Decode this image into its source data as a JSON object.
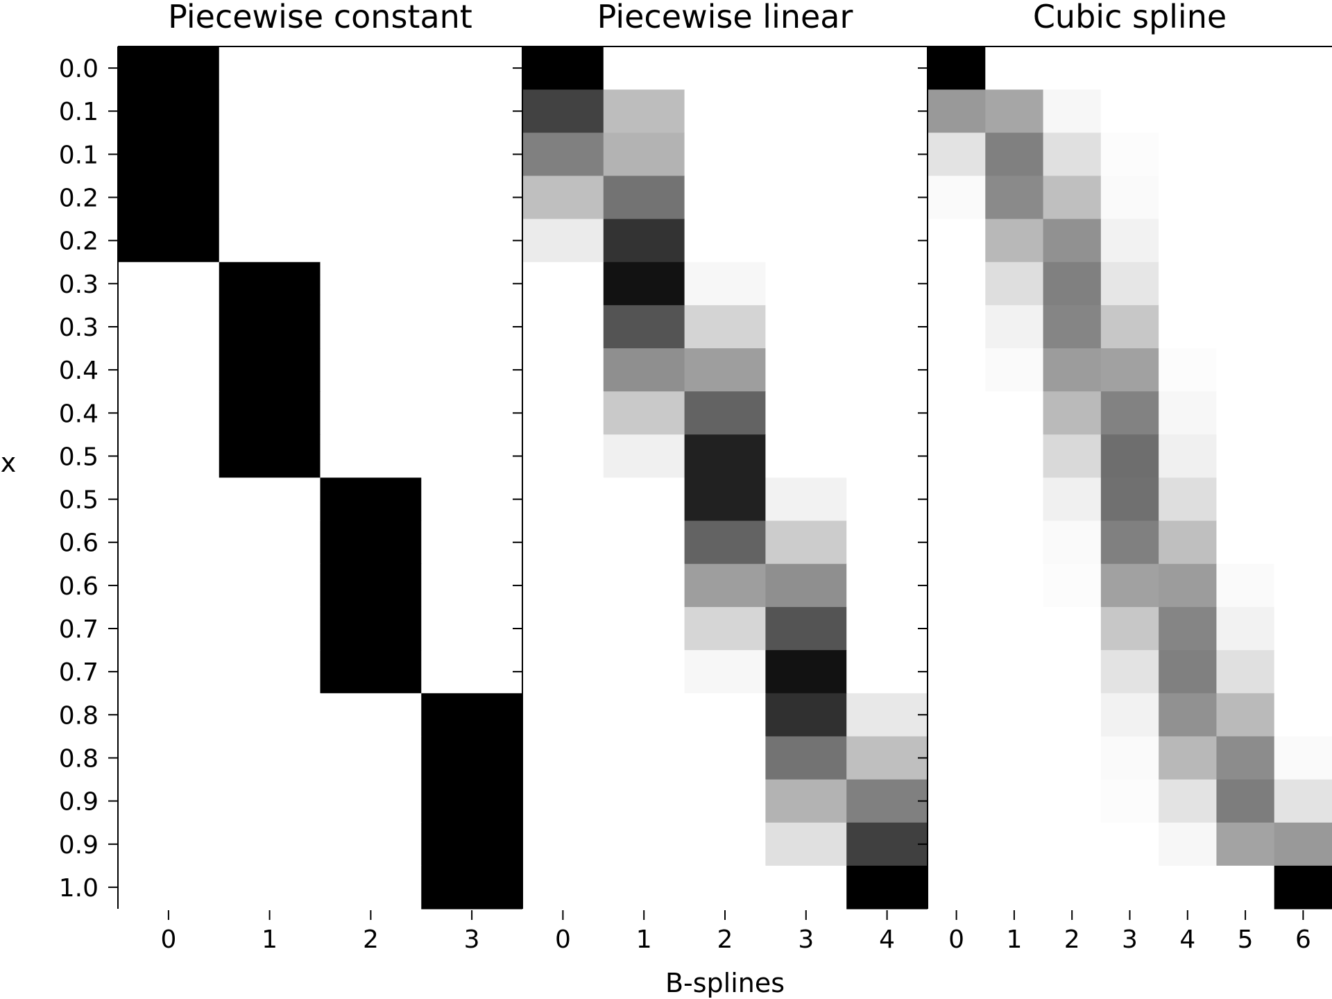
{
  "chart_data": [
    {
      "type": "heatmap",
      "title": "Piecewise constant",
      "x_ticks": [
        "0",
        "1",
        "2",
        "3"
      ],
      "y_ticks": [
        "0.0",
        "0.1",
        "0.1",
        "0.2",
        "0.2",
        "0.3",
        "0.3",
        "0.4",
        "0.4",
        "0.5",
        "0.5",
        "0.6",
        "0.6",
        "0.7",
        "0.7",
        "0.8",
        "0.8",
        "0.9",
        "0.9",
        "1.0"
      ],
      "colormap": "gray_r",
      "vrange": [
        0,
        1
      ],
      "values": [
        [
          1,
          0,
          0,
          0
        ],
        [
          1,
          0,
          0,
          0
        ],
        [
          1,
          0,
          0,
          0
        ],
        [
          1,
          0,
          0,
          0
        ],
        [
          1,
          0,
          0,
          0
        ],
        [
          0,
          1,
          0,
          0
        ],
        [
          0,
          1,
          0,
          0
        ],
        [
          0,
          1,
          0,
          0
        ],
        [
          0,
          1,
          0,
          0
        ],
        [
          0,
          1,
          0,
          0
        ],
        [
          0,
          0,
          1,
          0
        ],
        [
          0,
          0,
          1,
          0
        ],
        [
          0,
          0,
          1,
          0
        ],
        [
          0,
          0,
          1,
          0
        ],
        [
          0,
          0,
          1,
          0
        ],
        [
          0,
          0,
          0,
          1
        ],
        [
          0,
          0,
          0,
          1
        ],
        [
          0,
          0,
          0,
          1
        ],
        [
          0,
          0,
          0,
          1
        ],
        [
          0,
          0,
          0,
          1
        ]
      ]
    },
    {
      "type": "heatmap",
      "title": "Piecewise linear",
      "x_ticks": [
        "0",
        "1",
        "2",
        "3",
        "4"
      ],
      "colormap": "gray_r",
      "vrange": [
        0,
        1
      ],
      "values": [
        [
          1,
          0,
          0,
          0,
          0
        ],
        [
          0.74,
          0.26,
          0,
          0,
          0
        ],
        [
          0.5,
          0.3,
          0,
          0,
          0
        ],
        [
          0.25,
          0.55,
          0,
          0,
          0
        ],
        [
          0.08,
          0.8,
          0,
          0,
          0
        ],
        [
          0,
          0.93,
          0.03,
          0,
          0
        ],
        [
          0,
          0.67,
          0.17,
          0,
          0
        ],
        [
          0,
          0.44,
          0.38,
          0,
          0
        ],
        [
          0,
          0.21,
          0.61,
          0,
          0
        ],
        [
          0,
          0.06,
          0.87,
          0,
          0
        ],
        [
          0,
          0,
          0.87,
          0.05,
          0
        ],
        [
          0,
          0,
          0.61,
          0.2,
          0
        ],
        [
          0,
          0,
          0.38,
          0.44,
          0
        ],
        [
          0,
          0,
          0.16,
          0.67,
          0
        ],
        [
          0,
          0,
          0.03,
          0.93,
          0
        ],
        [
          0,
          0,
          0,
          0.81,
          0.09
        ],
        [
          0,
          0,
          0,
          0.55,
          0.25
        ],
        [
          0,
          0,
          0,
          0.3,
          0.5
        ],
        [
          0,
          0,
          0,
          0.12,
          0.75
        ],
        [
          0,
          0,
          0,
          0,
          1
        ]
      ]
    },
    {
      "type": "heatmap",
      "title": "Cubic spline",
      "x_ticks": [
        "0",
        "1",
        "2",
        "3",
        "4",
        "5",
        "6"
      ],
      "colormap": "gray_r",
      "vrange": [
        0,
        1
      ],
      "values": [
        [
          1,
          0,
          0,
          0,
          0,
          0,
          0
        ],
        [
          0.4,
          0.35,
          0.03,
          0,
          0,
          0,
          0
        ],
        [
          0.11,
          0.5,
          0.12,
          0.01,
          0,
          0,
          0
        ],
        [
          0.02,
          0.46,
          0.25,
          0.02,
          0,
          0,
          0
        ],
        [
          0,
          0.28,
          0.43,
          0.05,
          0,
          0,
          0
        ],
        [
          0,
          0.13,
          0.5,
          0.1,
          0,
          0,
          0
        ],
        [
          0,
          0.05,
          0.48,
          0.22,
          0,
          0,
          0
        ],
        [
          0,
          0.02,
          0.39,
          0.37,
          0.01,
          0,
          0
        ],
        [
          0,
          0,
          0.27,
          0.49,
          0.03,
          0,
          0
        ],
        [
          0,
          0,
          0.15,
          0.57,
          0.06,
          0,
          0
        ],
        [
          0,
          0,
          0.06,
          0.56,
          0.13,
          0,
          0
        ],
        [
          0,
          0,
          0.02,
          0.5,
          0.25,
          0,
          0
        ],
        [
          0,
          0,
          0.01,
          0.37,
          0.39,
          0.02,
          0
        ],
        [
          0,
          0,
          0,
          0.22,
          0.48,
          0.05,
          0
        ],
        [
          0,
          0,
          0,
          0.11,
          0.5,
          0.12,
          0
        ],
        [
          0,
          0,
          0,
          0.05,
          0.43,
          0.27,
          0
        ],
        [
          0,
          0,
          0,
          0.02,
          0.28,
          0.45,
          0.02
        ],
        [
          0,
          0,
          0,
          0.01,
          0.11,
          0.51,
          0.11
        ],
        [
          0,
          0,
          0,
          0,
          0.03,
          0.36,
          0.4
        ],
        [
          0,
          0,
          0,
          0,
          0,
          0,
          1
        ]
      ]
    }
  ],
  "shared_axes": {
    "ylabel": "x",
    "xlabel": "B-splines"
  }
}
